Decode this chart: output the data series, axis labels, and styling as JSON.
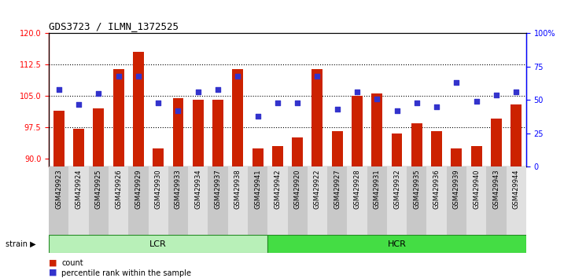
{
  "title": "GDS3723 / ILMN_1372525",
  "categories": [
    "GSM429923",
    "GSM429924",
    "GSM429925",
    "GSM429926",
    "GSM429929",
    "GSM429930",
    "GSM429933",
    "GSM429934",
    "GSM429937",
    "GSM429938",
    "GSM429941",
    "GSM429942",
    "GSM429920",
    "GSM429922",
    "GSM429927",
    "GSM429928",
    "GSM429931",
    "GSM429932",
    "GSM429935",
    "GSM429936",
    "GSM429939",
    "GSM429940",
    "GSM429943",
    "GSM429944"
  ],
  "bar_values": [
    101.5,
    97.2,
    102.0,
    111.5,
    115.5,
    92.5,
    104.5,
    104.0,
    104.0,
    111.5,
    92.5,
    93.0,
    95.0,
    111.5,
    96.5,
    105.0,
    105.5,
    96.0,
    98.5,
    96.5,
    92.5,
    93.0,
    99.5,
    103.0
  ],
  "dot_values": [
    58,
    47,
    55,
    68,
    68,
    48,
    42,
    56,
    58,
    68,
    38,
    48,
    48,
    68,
    43,
    56,
    51,
    42,
    48,
    45,
    63,
    49,
    54,
    56
  ],
  "lcr_count": 11,
  "hcr_count": 13,
  "ylim_left": [
    88,
    120
  ],
  "ylim_right": [
    0,
    100
  ],
  "yticks_left": [
    90,
    97.5,
    105,
    112.5,
    120
  ],
  "yticks_right": [
    0,
    25,
    50,
    75,
    100
  ],
  "bar_color": "#cc2200",
  "dot_color": "#3333cc",
  "grid_values": [
    97.5,
    105,
    112.5
  ],
  "lcr_color": "#b8f0b8",
  "hcr_color": "#44dd44",
  "plot_bg": "#ffffff",
  "legend_bar_label": "count",
  "legend_dot_label": "percentile rank within the sample"
}
